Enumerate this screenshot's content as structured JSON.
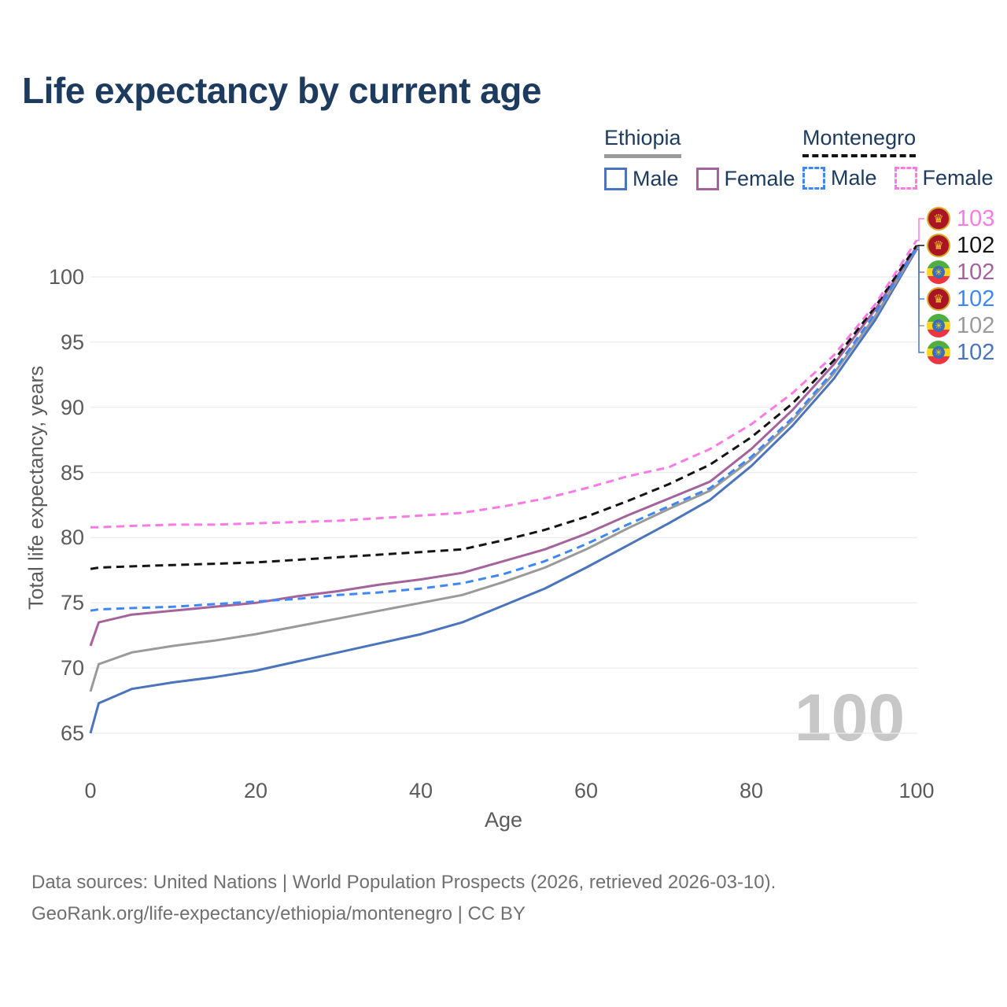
{
  "title": "Life expectancy by current age",
  "watermark": "100",
  "legend": {
    "ethiopia": {
      "country": "Ethiopia",
      "male_label": "Male",
      "female_label": "Female"
    },
    "montenegro": {
      "country": "Montenegro",
      "male_label": "Male",
      "female_label": "Female"
    }
  },
  "footer": {
    "line1": "Data sources: United Nations | World Population Prospects (2026, retrieved 2026-03-10).",
    "line2": "GeoRank.org/life-expectancy/ethiopia/montenegro | CC BY"
  },
  "chart_data": {
    "type": "line",
    "title": "Life expectancy by current age",
    "xlabel": "Age",
    "ylabel": "Total life expectancy, years",
    "xlim": [
      0,
      100
    ],
    "ylim": [
      64,
      104
    ],
    "x_ticks": [
      0,
      20,
      40,
      60,
      80,
      100
    ],
    "y_ticks": [
      65,
      70,
      75,
      80,
      85,
      90,
      95,
      100
    ],
    "grid": "horizontal",
    "legend_position": "top-right",
    "ages": [
      0,
      1,
      5,
      10,
      15,
      20,
      25,
      30,
      35,
      40,
      45,
      50,
      55,
      60,
      65,
      70,
      75,
      80,
      85,
      90,
      95,
      100
    ],
    "series": [
      {
        "name": "Montenegro Female",
        "country": "Montenegro",
        "sex": "Female",
        "flag": "mne",
        "color": "#fb7be4",
        "dash": true,
        "end_label": "103",
        "values": [
          80.8,
          80.8,
          80.9,
          81.0,
          81.0,
          81.1,
          81.2,
          81.3,
          81.5,
          81.7,
          81.9,
          82.4,
          83.0,
          83.8,
          84.7,
          85.4,
          86.8,
          88.7,
          91.1,
          94.0,
          97.9,
          102.8
        ]
      },
      {
        "name": "Montenegro Both sexes",
        "country": "Montenegro",
        "sex": "Both",
        "flag": "mne",
        "color": "#141414",
        "dash": true,
        "end_label": "102",
        "values": [
          77.6,
          77.7,
          77.8,
          77.9,
          78.0,
          78.1,
          78.3,
          78.5,
          78.7,
          78.9,
          79.1,
          79.8,
          80.6,
          81.6,
          82.8,
          84.1,
          85.6,
          87.7,
          90.3,
          93.6,
          97.7,
          102.4
        ]
      },
      {
        "name": "Ethiopia Female",
        "country": "Ethiopia",
        "sex": "Female",
        "flag": "eth",
        "color": "#a5639c",
        "dash": false,
        "end_label": "102",
        "values": [
          71.7,
          73.5,
          74.1,
          74.4,
          74.7,
          75.0,
          75.5,
          75.9,
          76.4,
          76.8,
          77.3,
          78.2,
          79.1,
          80.3,
          81.7,
          83.0,
          84.3,
          86.8,
          89.8,
          93.3,
          97.5,
          102.3
        ]
      },
      {
        "name": "Montenegro Male",
        "country": "Montenegro",
        "sex": "Male",
        "flag": "mne",
        "color": "#3f87f5",
        "dash": true,
        "end_label": "102",
        "values": [
          74.4,
          74.5,
          74.6,
          74.7,
          74.9,
          75.1,
          75.3,
          75.6,
          75.8,
          76.1,
          76.5,
          77.2,
          78.2,
          79.5,
          81.0,
          82.4,
          83.8,
          86.2,
          89.2,
          92.8,
          97.2,
          102.25
        ]
      },
      {
        "name": "Ethiopia Both sexes",
        "country": "Ethiopia",
        "sex": "Both",
        "flag": "eth",
        "color": "#9a9a9a",
        "dash": false,
        "end_label": "102",
        "values": [
          68.2,
          70.3,
          71.2,
          71.7,
          72.1,
          72.6,
          73.2,
          73.8,
          74.4,
          75.0,
          75.6,
          76.6,
          77.7,
          79.1,
          80.7,
          82.2,
          83.6,
          86.0,
          89.0,
          92.6,
          97.0,
          102.2
        ]
      },
      {
        "name": "Ethiopia Male",
        "country": "Ethiopia",
        "sex": "Male",
        "flag": "eth",
        "color": "#4a74bb",
        "dash": false,
        "end_label": "102",
        "values": [
          65.0,
          67.3,
          68.4,
          68.9,
          69.3,
          69.8,
          70.5,
          71.2,
          71.9,
          72.6,
          73.5,
          74.8,
          76.1,
          77.7,
          79.4,
          81.1,
          82.9,
          85.5,
          88.6,
          92.2,
          96.7,
          102.1
        ]
      }
    ]
  }
}
